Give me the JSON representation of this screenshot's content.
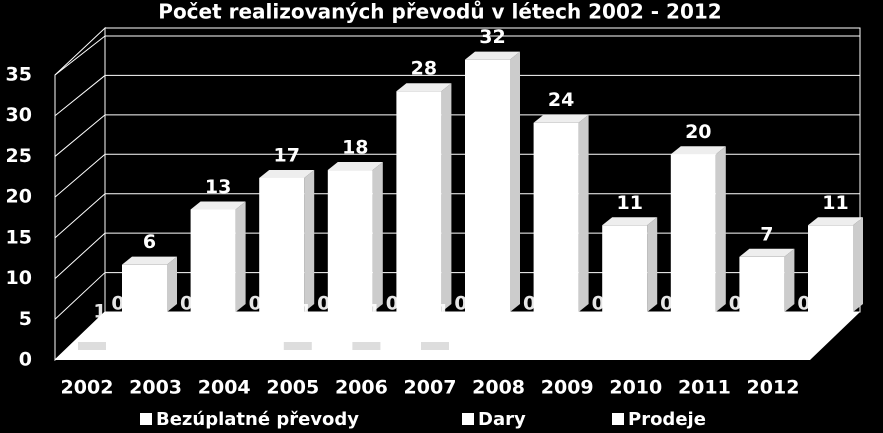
{
  "chart_data": {
    "type": "bar3d",
    "title": "Počet realizovaných převodů v létech  2002 - 2012",
    "categories": [
      "2002",
      "2003",
      "2004",
      "2005",
      "2006",
      "2007",
      "2008",
      "2009",
      "2010",
      "2011",
      "2012"
    ],
    "series": [
      {
        "name": "Bezúplatné převody",
        "color": "#ffffff",
        "values": [
          1,
          0,
          0,
          1,
          1,
          1,
          0,
          0,
          0,
          0,
          0
        ]
      },
      {
        "name": "Dary",
        "color": "#ffffff",
        "values": [
          0,
          0,
          0,
          0,
          0,
          0,
          0,
          0,
          0,
          0,
          0
        ]
      },
      {
        "name": "Prodeje",
        "color": "#ffffff",
        "values": [
          6,
          13,
          17,
          18,
          28,
          32,
          24,
          11,
          20,
          7,
          11
        ]
      }
    ],
    "ylim": [
      0,
      35
    ],
    "yticks": [
      0,
      5,
      10,
      15,
      20,
      25,
      30,
      35
    ],
    "grid": true,
    "legend": "bottom"
  }
}
